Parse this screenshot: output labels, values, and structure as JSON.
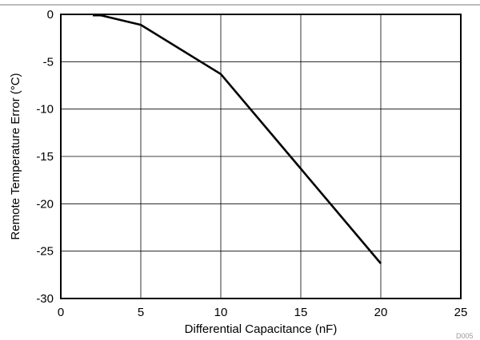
{
  "chart_data": {
    "type": "line",
    "title": "",
    "xlabel": "Differential Capacitance (nF)",
    "ylabel": "Remote Temperature  Error (°C)",
    "xlim": [
      0,
      25
    ],
    "ylim": [
      -30,
      0
    ],
    "xticks": [
      "0",
      "5",
      "10",
      "15",
      "20",
      "25"
    ],
    "yticks": [
      "0",
      "-5",
      "-10",
      "-15",
      "-20",
      "-25",
      "-30"
    ],
    "grid": true,
    "legend": "none",
    "series": [
      {
        "color": "#000000",
        "x": [
          2,
          2.5,
          5,
          10,
          15,
          20
        ],
        "y": [
          -0.1,
          -0.1,
          -1.1,
          -6.3,
          -16.3,
          -26.3
        ]
      }
    ],
    "annotation": "D005"
  }
}
